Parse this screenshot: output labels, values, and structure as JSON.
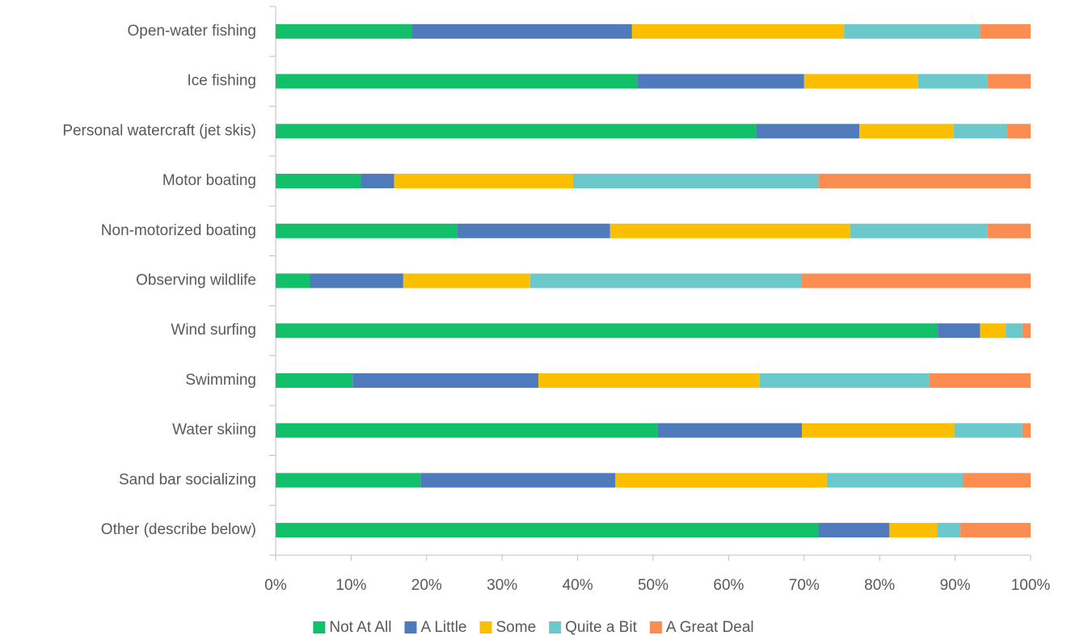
{
  "chart_data": {
    "type": "stacked_barh",
    "categories": [
      "Open-water fishing",
      "Ice fishing",
      "Personal watercraft (jet skis)",
      "Motor boating",
      "Non-motorized boating",
      "Observing wildlife",
      "Wind surfing",
      "Swimming",
      "Water skiing",
      "Sand bar socializing",
      "Other (describe below)"
    ],
    "series": [
      {
        "name": "Not At All",
        "color": "#12c06a",
        "values": [
          18.0,
          47.9,
          63.7,
          11.3,
          24.0,
          4.5,
          87.7,
          10.2,
          50.6,
          19.2,
          71.9
        ]
      },
      {
        "name": "A Little",
        "color": "#4f7bbd",
        "values": [
          29.2,
          22.1,
          13.6,
          4.4,
          20.3,
          12.4,
          5.6,
          24.6,
          19.1,
          25.8,
          9.4
        ]
      },
      {
        "name": "Some",
        "color": "#fbbf00",
        "values": [
          28.1,
          15.1,
          12.5,
          23.7,
          31.8,
          16.8,
          3.4,
          29.3,
          20.2,
          28.0,
          6.3
        ]
      },
      {
        "name": "Quite a Bit",
        "color": "#6bc8cb",
        "values": [
          18.0,
          9.2,
          7.0,
          32.5,
          18.2,
          36.0,
          2.2,
          22.5,
          9.0,
          18.0,
          3.1
        ]
      },
      {
        "name": "A Great Deal",
        "color": "#fb8c52",
        "values": [
          6.7,
          5.7,
          3.2,
          28.1,
          5.7,
          30.3,
          1.1,
          13.4,
          1.1,
          9.0,
          9.3
        ]
      }
    ],
    "xlim": [
      0,
      100
    ],
    "xticks": [
      {
        "value": 0,
        "label": "0%"
      },
      {
        "value": 10,
        "label": "10%"
      },
      {
        "value": 20,
        "label": "20%"
      },
      {
        "value": 30,
        "label": "30%"
      },
      {
        "value": 40,
        "label": "40%"
      },
      {
        "value": 50,
        "label": "50%"
      },
      {
        "value": 60,
        "label": "60%"
      },
      {
        "value": 70,
        "label": "70%"
      },
      {
        "value": 80,
        "label": "80%"
      },
      {
        "value": 90,
        "label": "90%"
      },
      {
        "value": 100,
        "label": "100%"
      }
    ],
    "legend": "bottom"
  }
}
